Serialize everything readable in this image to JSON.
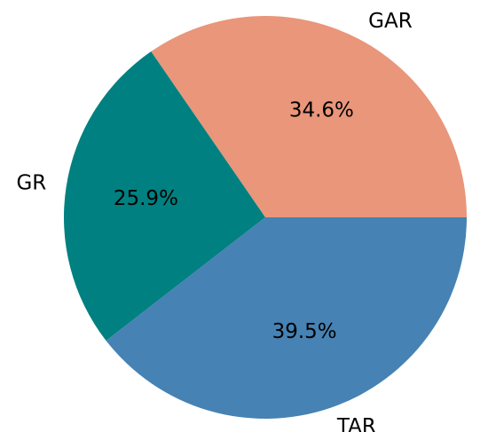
{
  "chart_data": {
    "type": "pie",
    "title": "",
    "slices": [
      {
        "label": "GAR",
        "value": 34.6,
        "pct_text": "34.6%",
        "color": "#e9967a"
      },
      {
        "label": "GR",
        "value": 25.9,
        "pct_text": "25.9%",
        "color": "#008080"
      },
      {
        "label": "TAR",
        "value": 39.5,
        "pct_text": "39.5%",
        "color": "#4682b4"
      }
    ],
    "start_angle_deg": 0,
    "direction": "counterclockwise",
    "legend": "none"
  }
}
